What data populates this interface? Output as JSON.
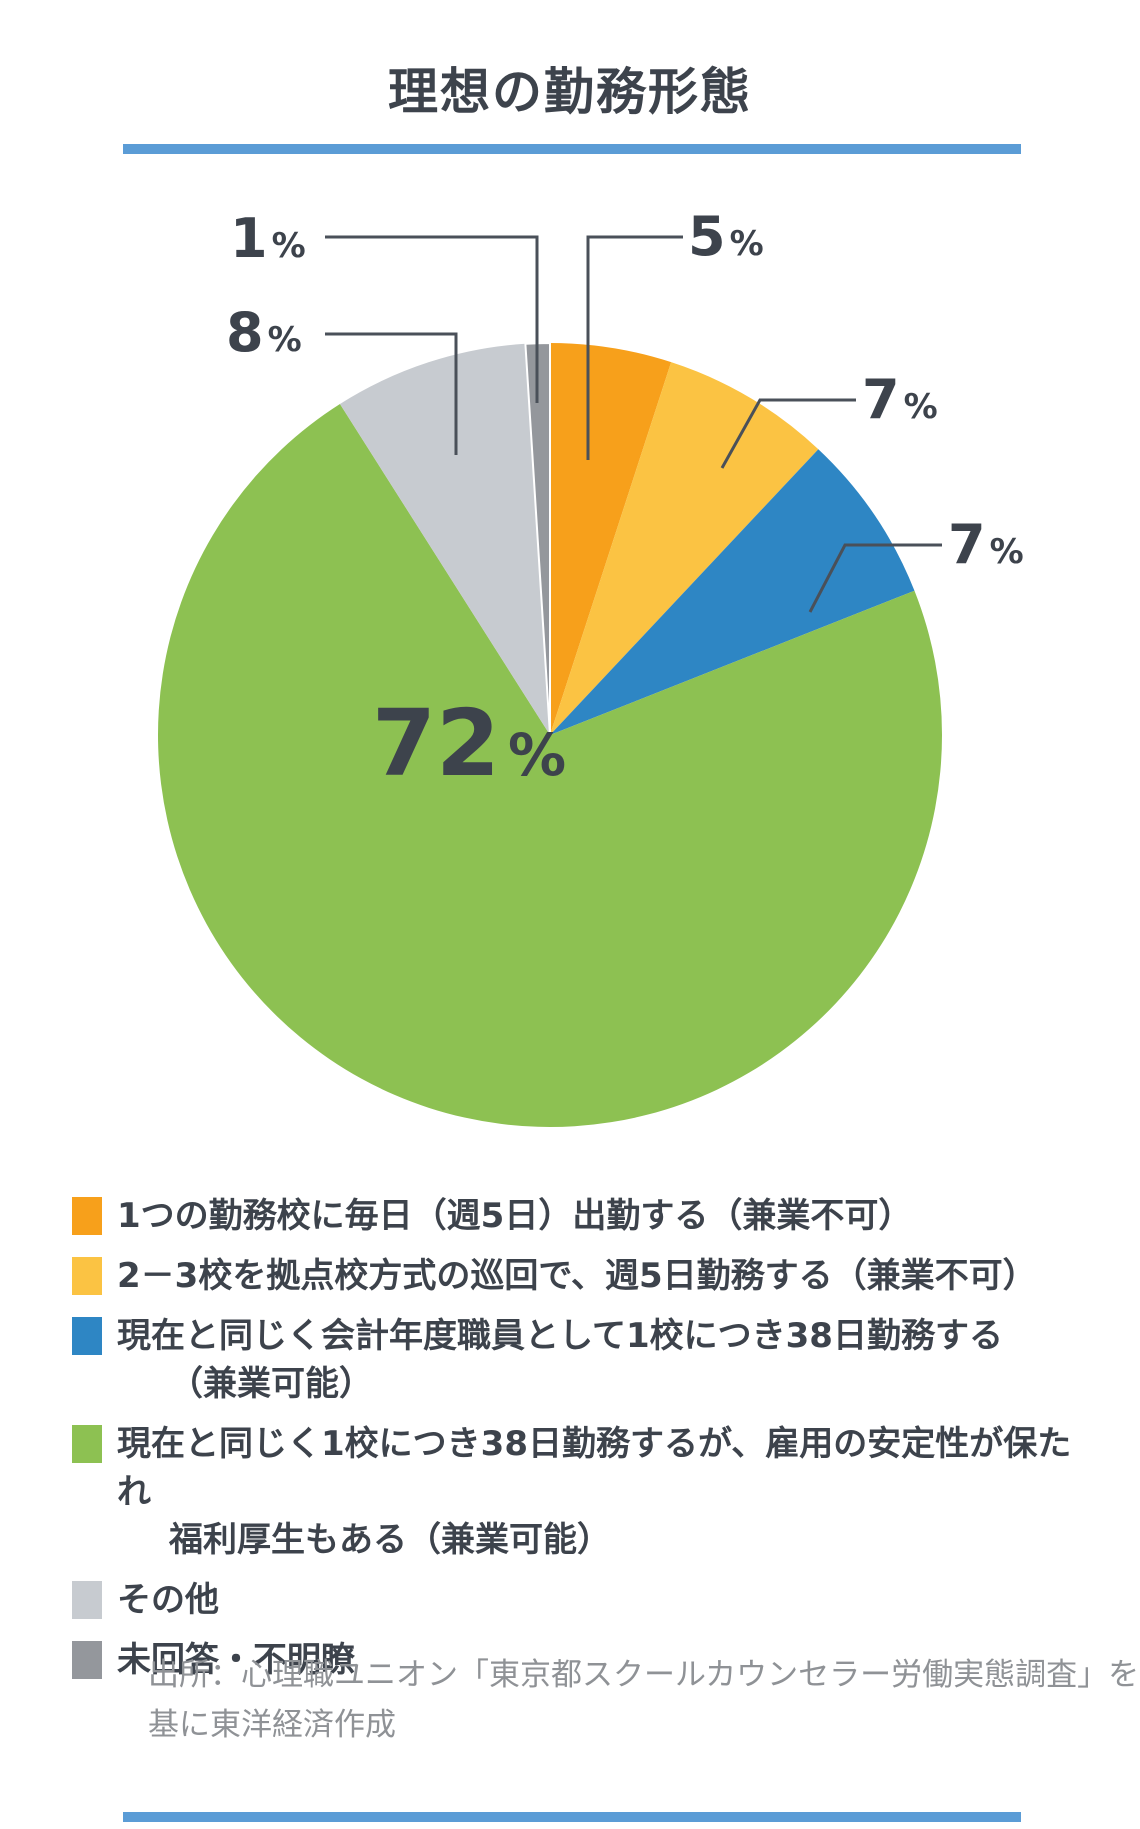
{
  "title": "理想の勤務形態",
  "accent_color": "#5B9CD6",
  "text_color": "#3D434C",
  "unit_sign": "%",
  "chart_data": {
    "type": "pie",
    "title": "理想の勤務形態",
    "unit": "%",
    "start_angle": "12-oclock",
    "direction": "clockwise",
    "series": [
      {
        "label": "1つの勤務校に毎日（週5日）出勤する（兼業不可）",
        "value": 5,
        "color": "#F7A01B"
      },
      {
        "label": "2－3校を拠点校方式の巡回で、週5日勤務する（兼業不可）",
        "value": 7,
        "color": "#FBC343"
      },
      {
        "label": "現在と同じく会計年度職員として1校につき38日勤務する（兼業可能）",
        "value": 7,
        "color": "#2E86C4"
      },
      {
        "label": "現在と同じく1校につき38日勤務するが、雇用の安定性が保たれ福利厚生もある（兼業可能）",
        "value": 72,
        "color": "#8DC152"
      },
      {
        "label": "その他",
        "value": 8,
        "color": "#C7CBD0"
      },
      {
        "label": "未回答・不明瞭",
        "value": 1,
        "color": "#94979C"
      }
    ]
  },
  "legend": {
    "entries": [
      {
        "lines": [
          "1つの勤務校に毎日（週5日）出勤する（兼業不可）"
        ]
      },
      {
        "lines": [
          "2－3校を拠点校方式の巡回で、週5日勤務する（兼業不可）"
        ]
      },
      {
        "lines": [
          "現在と同じく会計年度職員として1校につき38日勤務する",
          "（兼業可能）"
        ]
      },
      {
        "lines": [
          "現在と同じく1校につき38日勤務するが、雇用の安定性が保たれ",
          "福利厚生もある（兼業可能）"
        ]
      },
      {
        "lines": [
          "その他"
        ]
      },
      {
        "lines": [
          "未回答・不明瞭"
        ]
      }
    ]
  },
  "source": {
    "lines": [
      "出所：心理職ユニオン「東京都スクールカウンセラー労働実態調査」を",
      "基に東洋経済作成"
    ]
  }
}
